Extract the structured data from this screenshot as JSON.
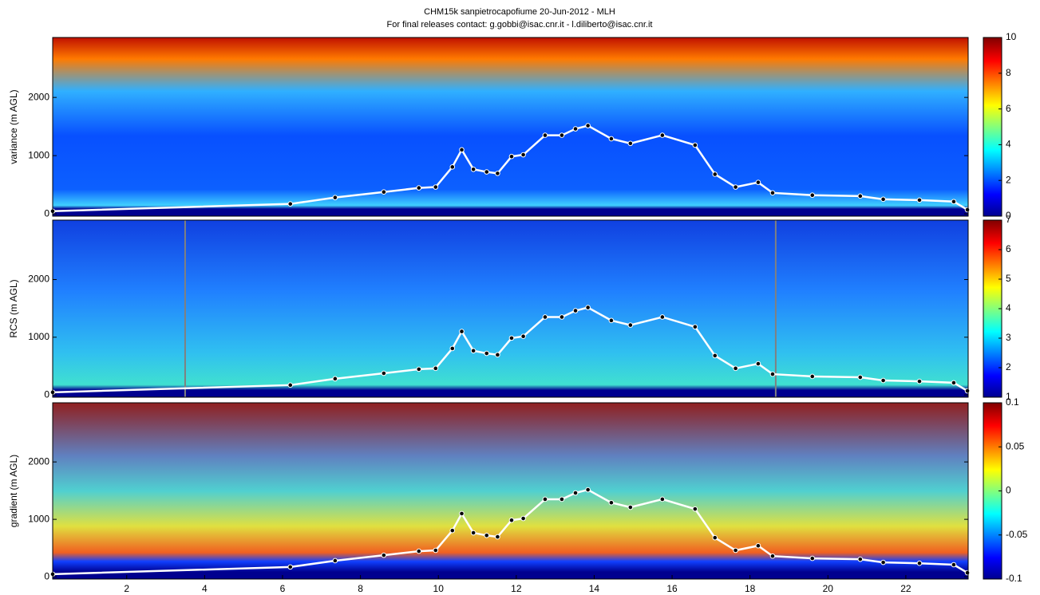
{
  "chart_data": [
    {
      "type": "heatmap",
      "title": "CHM15k sanpietrocapofiume 20-Jun-2012 - MLH",
      "subtitle": "For final releases contact: g.gobbi@isac.cnr.it - l.diliberto@isac.cnr.it",
      "ylabel": "variance (m AGL)",
      "xlim": [
        0.1,
        23.6
      ],
      "ylim": [
        -40,
        3030
      ],
      "yticks": [
        0,
        1000,
        2000
      ],
      "colormap": "jet",
      "clim": [
        0,
        10
      ],
      "cticks": [
        0,
        2,
        4,
        6,
        8,
        10
      ],
      "mlh": {
        "color": "#ffffff",
        "x": [
          0.1,
          6.2,
          7.35,
          8.6,
          9.5,
          9.93,
          10.36,
          10.6,
          10.9,
          11.24,
          11.52,
          11.88,
          12.18,
          12.74,
          13.17,
          13.52,
          13.84,
          14.44,
          14.93,
          15.75,
          16.59,
          17.1,
          17.63,
          18.21,
          18.58,
          19.6,
          20.83,
          21.42,
          22.35,
          23.23,
          23.58
        ],
        "y": [
          45,
          170,
          280,
          375,
          445,
          460,
          805,
          1100,
          765,
          720,
          695,
          985,
          1015,
          1350,
          1350,
          1460,
          1515,
          1290,
          1210,
          1350,
          1180,
          680,
          460,
          540,
          360,
          320,
          305,
          250,
          235,
          210,
          70
        ]
      }
    },
    {
      "type": "heatmap",
      "ylabel": "RCS (m AGL)",
      "xlim": [
        0.1,
        23.6
      ],
      "ylim": [
        -40,
        3030
      ],
      "yticks": [
        0,
        1000,
        2000
      ],
      "colormap": "jet",
      "clim": [
        1,
        7
      ],
      "cticks": [
        1,
        2,
        3,
        4,
        5,
        6,
        7
      ],
      "vlines": [
        3.5,
        18.66
      ],
      "vline_color": "#808080",
      "mlh": {
        "color": "#ffffff",
        "x": [
          0.1,
          6.2,
          7.35,
          8.6,
          9.5,
          9.93,
          10.36,
          10.6,
          10.9,
          11.24,
          11.52,
          11.88,
          12.18,
          12.74,
          13.17,
          13.52,
          13.84,
          14.44,
          14.93,
          15.75,
          16.59,
          17.1,
          17.63,
          18.21,
          18.58,
          19.6,
          20.83,
          21.42,
          22.35,
          23.23,
          23.58
        ],
        "y": [
          45,
          170,
          280,
          375,
          445,
          460,
          805,
          1100,
          765,
          720,
          695,
          985,
          1015,
          1350,
          1350,
          1460,
          1515,
          1290,
          1210,
          1350,
          1180,
          680,
          460,
          540,
          360,
          320,
          305,
          250,
          235,
          210,
          70
        ]
      }
    },
    {
      "type": "heatmap",
      "ylabel": "gradient (m AGL)",
      "xlim": [
        0.1,
        23.6
      ],
      "ylim": [
        -40,
        3030
      ],
      "yticks": [
        0,
        1000,
        2000
      ],
      "xticks": [
        2,
        4,
        6,
        8,
        10,
        12,
        14,
        16,
        18,
        20,
        22
      ],
      "colormap": "jet",
      "clim": [
        -0.1,
        0.1
      ],
      "cticks": [
        -0.1,
        -0.05,
        0,
        0.05,
        0.1
      ],
      "mlh": {
        "color": "#ffffff",
        "x": [
          0.1,
          6.2,
          7.35,
          8.6,
          9.5,
          9.93,
          10.36,
          10.6,
          10.9,
          11.24,
          11.52,
          11.88,
          12.18,
          12.74,
          13.17,
          13.52,
          13.84,
          14.44,
          14.93,
          15.75,
          16.59,
          17.1,
          17.63,
          18.21,
          18.58,
          19.6,
          20.83,
          21.42,
          22.35,
          23.23,
          23.58
        ],
        "y": [
          45,
          170,
          280,
          375,
          445,
          460,
          805,
          1100,
          765,
          720,
          695,
          985,
          1015,
          1350,
          1350,
          1460,
          1515,
          1290,
          1210,
          1350,
          1180,
          680,
          460,
          540,
          360,
          320,
          305,
          250,
          235,
          210,
          70
        ]
      }
    }
  ]
}
